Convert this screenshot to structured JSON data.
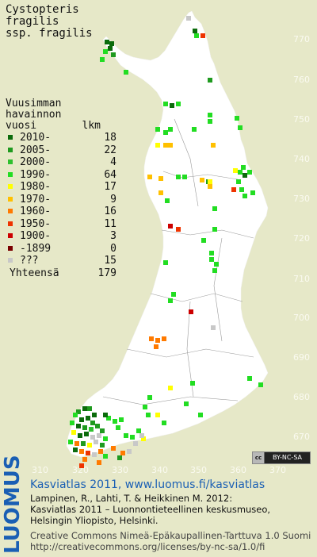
{
  "title": [
    "Cystopteris",
    "fragilis",
    "ssp. fragilis"
  ],
  "legend": {
    "heading": [
      "Vuusimman",
      "havainnon"
    ],
    "col_year": "vuosi",
    "col_count": "lkm",
    "items": [
      {
        "label": "2010-",
        "count": "18",
        "color": "#0b6b0b"
      },
      {
        "label": "2005-",
        "count": "22",
        "color": "#1f9a1f"
      },
      {
        "label": "2000-",
        "count": "4",
        "color": "#2ec02e"
      },
      {
        "label": "1990-",
        "count": "64",
        "color": "#22dd22"
      },
      {
        "label": "1980-",
        "count": "17",
        "color": "#ffff00"
      },
      {
        "label": "1970-",
        "count": "9",
        "color": "#ffc000"
      },
      {
        "label": "1960-",
        "count": "16",
        "color": "#ff7a00"
      },
      {
        "label": "1950-",
        "count": "11",
        "color": "#ee3300"
      },
      {
        "label": "1900-",
        "count": "3",
        "color": "#cc0000"
      },
      {
        "label": "-1899",
        "count": "0",
        "color": "#7a0000"
      },
      {
        "label": "???",
        "count": "15",
        "color": "#c8c8c8"
      }
    ],
    "total_label": "Yhteensä",
    "total_count": "179"
  },
  "axes": {
    "y_ticks": [
      "770",
      "760",
      "750",
      "740",
      "730",
      "720",
      "710",
      "700",
      "690",
      "680",
      "670"
    ],
    "x_ticks": [
      "310",
      "320",
      "330",
      "340",
      "350",
      "360",
      "370"
    ]
  },
  "license_badge": "BY-NC-SA",
  "luomus_logo": "LUOMUS",
  "credits": {
    "site": "Kasviatlas 2011, www.luomus.fi/kasviatlas",
    "cite_1": "Lampinen, R., Lahti, T. & Heikkinen M. 2012:",
    "cite_2": "Kasviatlas 2011 – Luonnontieteellinen keskusmuseo,",
    "cite_3": "Helsingin Yliopisto, Helsinki.",
    "license_1": "Creative Commons Nimeä-Epäkaupallinen-Tarttuva 1.0 Suomi",
    "license_2": "http://creativecommons.org/licenses/by-nc-sa/1.0/fi"
  }
}
